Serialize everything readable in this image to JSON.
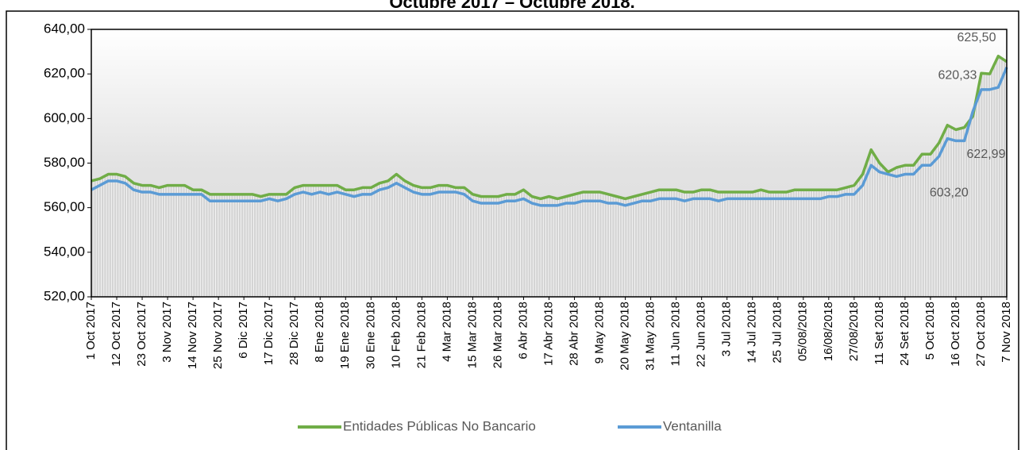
{
  "chart_data": {
    "type": "line",
    "title": "Octubre 2017 – Octubre 2018.",
    "categories": [
      "1 Oct 2017",
      null,
      null,
      "12 Oct 2017",
      null,
      null,
      "23 Oct 2017",
      null,
      null,
      "3 Nov 2017",
      null,
      null,
      "14 Nov 2017",
      null,
      null,
      "25 Nov 2017",
      null,
      null,
      "6 Dic 2017",
      null,
      null,
      "17 Dic 2017",
      null,
      null,
      "28 Dic 2017",
      null,
      null,
      "8 Ene 2018",
      null,
      null,
      "19 Ene 2018",
      null,
      null,
      "30 Ene 2018",
      null,
      null,
      "10 Feb 2018",
      null,
      null,
      "21 Feb 2018",
      null,
      null,
      "4 Mar 2018",
      null,
      null,
      "15 Mar 2018",
      null,
      null,
      "26 Mar 2018",
      null,
      null,
      "6 Abr 2018",
      null,
      null,
      "17 Abr 2018",
      null,
      null,
      "28 Abr 2018",
      null,
      null,
      "9 May 2018",
      null,
      null,
      "20 May 2018",
      null,
      null,
      "31 May 2018",
      null,
      null,
      "11 Jun 2018",
      null,
      null,
      "22 Jun 2018",
      null,
      null,
      "3 Jul 2018",
      null,
      null,
      "14 Jul 2018",
      null,
      null,
      "25 Jul 2018",
      null,
      null,
      "05/08/2018",
      null,
      null,
      "16/08/2018",
      null,
      null,
      "27/08/2018",
      null,
      null,
      "11 Set 2018",
      null,
      null,
      "24 Set 2018",
      null,
      null,
      "5 Oct 2018",
      null,
      null,
      "16 Oct 2018",
      null,
      null,
      "27 Oct 2018",
      null,
      null,
      "7 Nov 2018"
    ],
    "series": [
      {
        "name": "Entidades Públicas No Bancario",
        "color": "#70ad47",
        "values": [
          572,
          573,
          575,
          575,
          574,
          571,
          570,
          570,
          569,
          570,
          570,
          570,
          568,
          568,
          566,
          566,
          566,
          566,
          566,
          566,
          565,
          566,
          566,
          566,
          569,
          570,
          570,
          570,
          570,
          570,
          568,
          568,
          569,
          569,
          571,
          572,
          575,
          572,
          570,
          569,
          569,
          570,
          570,
          569,
          569,
          566,
          565,
          565,
          565,
          566,
          566,
          568,
          565,
          564,
          565,
          564,
          565,
          566,
          567,
          567,
          567,
          566,
          565,
          564,
          565,
          566,
          567,
          568,
          568,
          568,
          567,
          567,
          568,
          568,
          567,
          567,
          567,
          567,
          567,
          568,
          567,
          567,
          567,
          568,
          568,
          568,
          568,
          568,
          568,
          569,
          570,
          575,
          586,
          580,
          576,
          578,
          579,
          579,
          584,
          584,
          589,
          597,
          595,
          596,
          601,
          620.33,
          620,
          628,
          625.5
        ],
        "value_labels": [
          null,
          null,
          null,
          null,
          null,
          null,
          null,
          null,
          null,
          null,
          null,
          null,
          null,
          null,
          null,
          null,
          null,
          null,
          null,
          null,
          null,
          null,
          null,
          null,
          null,
          null,
          null,
          null,
          null,
          null,
          null,
          null,
          null,
          null,
          null,
          null,
          null,
          null,
          null,
          null,
          null,
          null,
          null,
          null,
          null,
          null,
          null,
          null,
          null,
          null,
          null,
          null,
          null,
          null,
          null,
          null,
          null,
          null,
          null,
          null,
          null,
          null,
          null,
          null,
          null,
          null,
          null,
          null,
          null,
          null,
          null,
          null,
          null,
          null,
          null,
          null,
          null,
          null,
          null,
          null,
          null,
          null,
          null,
          null,
          null,
          null,
          null,
          null,
          null,
          null,
          null,
          null,
          null,
          null,
          null,
          null,
          null,
          null,
          null,
          null,
          null,
          null,
          null,
          null,
          null,
          "620,33",
          null,
          null,
          "625,50"
        ]
      },
      {
        "name": "Ventanilla",
        "color": "#5b9bd5",
        "values": [
          568,
          570,
          572,
          572,
          571,
          568,
          567,
          567,
          566,
          566,
          566,
          566,
          566,
          566,
          563,
          563,
          563,
          563,
          563,
          563,
          563,
          564,
          563,
          564,
          566,
          567,
          566,
          567,
          566,
          567,
          566,
          565,
          566,
          566,
          568,
          569,
          571,
          569,
          567,
          566,
          566,
          567,
          567,
          567,
          566,
          563,
          562,
          562,
          562,
          563,
          563,
          564,
          562,
          561,
          561,
          561,
          562,
          562,
          563,
          563,
          563,
          562,
          562,
          561,
          562,
          563,
          563,
          564,
          564,
          564,
          563,
          564,
          564,
          564,
          563,
          564,
          564,
          564,
          564,
          564,
          564,
          564,
          564,
          564,
          564,
          564,
          564,
          565,
          565,
          566,
          566,
          570,
          579,
          576,
          575,
          574,
          575,
          575,
          579,
          579,
          583,
          591,
          590,
          590,
          603.2,
          613,
          613,
          614,
          622.99
        ],
        "value_labels": [
          null,
          null,
          null,
          null,
          null,
          null,
          null,
          null,
          null,
          null,
          null,
          null,
          null,
          null,
          null,
          null,
          null,
          null,
          null,
          null,
          null,
          null,
          null,
          null,
          null,
          null,
          null,
          null,
          null,
          null,
          null,
          null,
          null,
          null,
          null,
          null,
          null,
          null,
          null,
          null,
          null,
          null,
          null,
          null,
          null,
          null,
          null,
          null,
          null,
          null,
          null,
          null,
          null,
          null,
          null,
          null,
          null,
          null,
          null,
          null,
          null,
          null,
          null,
          null,
          null,
          null,
          null,
          null,
          null,
          null,
          null,
          null,
          null,
          null,
          null,
          null,
          null,
          null,
          null,
          null,
          null,
          null,
          null,
          null,
          null,
          null,
          null,
          null,
          null,
          null,
          null,
          null,
          null,
          null,
          null,
          null,
          null,
          null,
          null,
          null,
          null,
          null,
          null,
          null,
          "603,20",
          null,
          null,
          null,
          "622,99"
        ]
      }
    ],
    "ylim": [
      520,
      640
    ],
    "yticks": [
      {
        "value": 520,
        "label": "520,00"
      },
      {
        "value": 540,
        "label": "540,00"
      },
      {
        "value": 560,
        "label": "560,00"
      },
      {
        "value": 580,
        "label": "580,00"
      },
      {
        "value": 600,
        "label": "600,00"
      },
      {
        "value": 620,
        "label": "620,00"
      },
      {
        "value": 640,
        "label": "640,00"
      }
    ],
    "legend": "bottom"
  }
}
